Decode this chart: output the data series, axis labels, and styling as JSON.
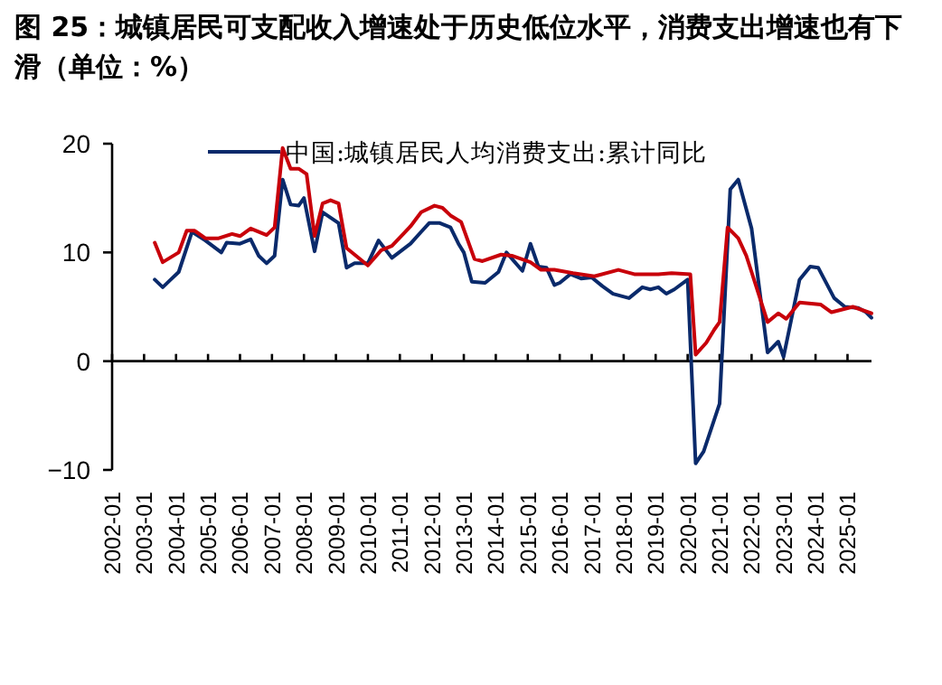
{
  "chart_data": {
    "type": "line",
    "title": "图 25：城镇居民可支配收入增速处于历史低位水平，消费支出增速也有下滑（单位：%）",
    "xlim": [
      "2002-01",
      "2025-10"
    ],
    "xticks": [
      "2002-01",
      "2003-01",
      "2004-01",
      "2005-01",
      "2006-01",
      "2007-01",
      "2008-01",
      "2009-01",
      "2010-01",
      "2011-01",
      "2012-01",
      "2013-01",
      "2014-01",
      "2015-01",
      "2016-01",
      "2017-01",
      "2018-01",
      "2019-01",
      "2020-01",
      "2021-01",
      "2022-01",
      "2023-01",
      "2024-01",
      "2025-01"
    ],
    "ylim": [
      -10,
      20
    ],
    "yticks": [
      -10,
      0,
      10,
      20
    ],
    "legend": "top",
    "line_style": "solid",
    "marker": "none",
    "series": [
      {
        "name": "中国:城镇居民人均消费支出:累计同比",
        "color": "#0a2a6b",
        "x": [
          "2003-05",
          "2003-08",
          "2003-11",
          "2004-02",
          "2004-07",
          "2004-12",
          "2005-06",
          "2005-08",
          "2006-01",
          "2006-05",
          "2006-08",
          "2006-11",
          "2007-02",
          "2007-05",
          "2007-08",
          "2007-11",
          "2008-01",
          "2008-05",
          "2008-08",
          "2008-11",
          "2009-02",
          "2009-05",
          "2009-08",
          "2010-01",
          "2010-05",
          "2010-10",
          "2011-05",
          "2011-09",
          "2011-12",
          "2012-04",
          "2012-08",
          "2012-11",
          "2013-01",
          "2013-04",
          "2013-09",
          "2014-02",
          "2014-05",
          "2014-11",
          "2015-02",
          "2015-05",
          "2015-08",
          "2015-11",
          "2016-01",
          "2016-05",
          "2016-09",
          "2017-01",
          "2017-05",
          "2017-09",
          "2018-03",
          "2018-08",
          "2018-11",
          "2019-02",
          "2019-05",
          "2019-08",
          "2020-01",
          "2020-04",
          "2020-07",
          "2021-01",
          "2021-05",
          "2021-08",
          "2022-01",
          "2022-07",
          "2022-11",
          "2023-01",
          "2023-07",
          "2023-11",
          "2024-02",
          "2024-08",
          "2024-12",
          "2025-05",
          "2025-08",
          "2025-10"
        ],
        "values": [
          7.5,
          6.8,
          7.5,
          8.2,
          11.9,
          11.1,
          10.0,
          10.9,
          10.8,
          11.2,
          9.7,
          9.0,
          9.7,
          16.7,
          14.4,
          14.3,
          15.0,
          10.1,
          13.7,
          13.2,
          12.7,
          8.6,
          9.0,
          9.0,
          11.1,
          9.5,
          10.8,
          11.9,
          12.7,
          12.7,
          12.3,
          10.8,
          10.0,
          7.3,
          7.2,
          8.2,
          10.0,
          8.3,
          10.8,
          8.7,
          8.6,
          7.0,
          7.2,
          8.0,
          7.6,
          7.7,
          6.9,
          6.2,
          5.8,
          6.8,
          6.6,
          6.8,
          6.2,
          6.6,
          7.5,
          -9.4,
          -8.3,
          -3.9,
          15.8,
          16.7,
          12.2,
          0.8,
          1.8,
          0.4,
          7.5,
          8.7,
          8.6,
          5.8,
          5.0,
          4.9,
          4.5,
          4.0
        ]
      },
      {
        "color": "#c8000a",
        "x": [
          "2003-05",
          "2003-08",
          "2004-02",
          "2004-05",
          "2004-08",
          "2004-12",
          "2005-05",
          "2005-10",
          "2006-01",
          "2006-05",
          "2006-11",
          "2007-02",
          "2007-05",
          "2007-08",
          "2007-11",
          "2008-02",
          "2008-05",
          "2008-08",
          "2008-11",
          "2009-02",
          "2009-05",
          "2009-08",
          "2010-01",
          "2010-06",
          "2010-10",
          "2011-05",
          "2011-09",
          "2012-02",
          "2012-05",
          "2012-08",
          "2012-12",
          "2013-05",
          "2013-08",
          "2014-03",
          "2014-07",
          "2015-02",
          "2015-06",
          "2015-11",
          "2016-06",
          "2017-02",
          "2017-11",
          "2018-05",
          "2019-02",
          "2019-07",
          "2020-02",
          "2020-04",
          "2020-08",
          "2020-11",
          "2021-01",
          "2021-04",
          "2021-08",
          "2021-11",
          "2022-01",
          "2022-07",
          "2022-11",
          "2023-02",
          "2023-07",
          "2024-03",
          "2024-07",
          "2025-03",
          "2025-10"
        ],
        "values": [
          10.9,
          9.1,
          10.0,
          12.0,
          12.0,
          11.3,
          11.3,
          11.7,
          11.5,
          12.2,
          11.6,
          12.3,
          19.6,
          17.7,
          17.7,
          17.2,
          11.5,
          14.5,
          14.8,
          14.5,
          10.4,
          9.8,
          8.8,
          10.2,
          10.6,
          12.4,
          13.7,
          14.3,
          14.1,
          13.4,
          12.8,
          9.4,
          9.2,
          9.8,
          9.7,
          9.1,
          8.4,
          8.4,
          8.1,
          7.8,
          8.4,
          8.0,
          8.0,
          8.1,
          8.0,
          0.6,
          1.7,
          2.9,
          3.6,
          12.3,
          11.3,
          9.7,
          8.2,
          3.6,
          4.4,
          3.9,
          5.4,
          5.2,
          4.5,
          5.0,
          4.4
        ]
      }
    ]
  }
}
